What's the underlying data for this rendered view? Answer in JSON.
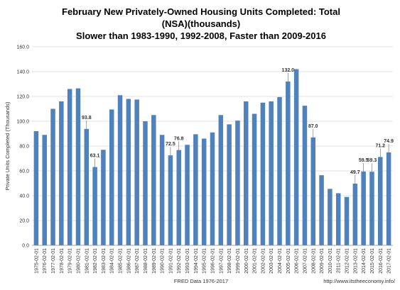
{
  "chart_data": {
    "type": "bar",
    "title": [
      "February New Privately-Owned Housing Units Completed: Total",
      "(NSA)(thousands)",
      "Slower than 1983-1990, 1992-2008, Faster than 2009-2016"
    ],
    "xlabel": "FRED Data 1976-2017",
    "ylabel": "Private Units Completed (Thousands)",
    "source_note": "http://www.itstheeconomy.info/",
    "ylim": [
      0,
      160
    ],
    "y_ticks": [
      "0.0",
      "20.0",
      "40.0",
      "60.0",
      "80.0",
      "100.0",
      "120.0",
      "140.0",
      "160.0"
    ],
    "grid": true,
    "bar_color": "#4f81bd",
    "categories": [
      "1975-02-01",
      "1976-02-01",
      "1977-02-01",
      "1978-02-01",
      "1979-02-01",
      "1980-02-01",
      "1981-02-01",
      "1982-02-01",
      "1983-02-01",
      "1984-02-01",
      "1985-02-01",
      "1986-02-01",
      "1987-02-01",
      "1988-02-01",
      "1989-02-01",
      "1990-02-01",
      "1991-02-01",
      "1992-02-01",
      "1993-02-01",
      "1994-02-01",
      "1995-02-01",
      "1996-02-01",
      "1997-02-01",
      "1998-02-01",
      "1999-02-01",
      "2000-02-01",
      "2001-02-01",
      "2002-02-01",
      "2003-02-01",
      "2004-02-01",
      "2005-02-01",
      "2006-02-01",
      "2007-02-01",
      "2008-02-01",
      "2009-02-01",
      "2010-02-01",
      "2011-02-01",
      "2012-02-01",
      "2013-02-01",
      "2014-02-01",
      "2015-02-01",
      "2016-02-01",
      "2017-02-01"
    ],
    "values": [
      92,
      89,
      110,
      116,
      126,
      126.5,
      93.8,
      63.1,
      77,
      109.5,
      121,
      118,
      117.5,
      100,
      105,
      89,
      72.5,
      76.8,
      81,
      89.5,
      86,
      91,
      105,
      97.5,
      100.5,
      116,
      106,
      115,
      116,
      119.5,
      132,
      142,
      112.5,
      87,
      56.5,
      45.5,
      42,
      39,
      49.7,
      59.5,
      59.3,
      71.2,
      74.9
    ],
    "data_labels": [
      {
        "category": "1981-02-01",
        "text": "93.8"
      },
      {
        "category": "1982-02-01",
        "text": "63.1"
      },
      {
        "category": "1991-02-01",
        "text": "72.5"
      },
      {
        "category": "1992-02-01",
        "text": "76.8"
      },
      {
        "category": "2005-02-01",
        "text": "132.0"
      },
      {
        "category": "2008-02-01",
        "text": "87.0"
      },
      {
        "category": "2013-02-01",
        "text": "49.7"
      },
      {
        "category": "2014-02-01",
        "text": "59.5"
      },
      {
        "category": "2015-02-01",
        "text": "59.3"
      },
      {
        "category": "2016-02-01",
        "text": "71.2"
      },
      {
        "category": "2017-02-01",
        "text": "74.9"
      }
    ]
  }
}
